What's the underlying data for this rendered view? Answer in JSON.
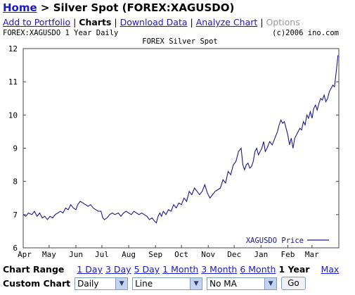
{
  "header": {
    "home_label": "Home",
    "sep": " > ",
    "title": "Silver Spot (FOREX:XAGUSDO)"
  },
  "nav": {
    "add": "Add to Portfolio",
    "charts": "Charts",
    "download": "Download Data",
    "analyze": "Analyze Chart",
    "options": "Options"
  },
  "chart_data": {
    "type": "line",
    "top_left_label": "FOREX:XAGUSDO 1 Year Daily",
    "copyright": "(c)2006 ino.com",
    "title": "FOREX Silver Spot",
    "ylim": [
      6,
      12
    ],
    "y_ticks": [
      "6",
      "7",
      "8",
      "9",
      "10",
      "11",
      "12"
    ],
    "x_ticks": [
      "Apr",
      "May",
      "Jun",
      "Jul",
      "Aug",
      "Sep",
      "Oct",
      "Nov",
      "Dec",
      "Jan",
      "Feb",
      "Mar"
    ],
    "x_tick_days": [
      0,
      30,
      61,
      91,
      122,
      153,
      183,
      214,
      244,
      275,
      306,
      334
    ],
    "x_max_day": 365,
    "grid": false,
    "legend_position": "bottom-right",
    "series": [
      {
        "name": "XAGUSDO Price",
        "color": "#1a1a8c",
        "points": [
          [
            0,
            7.0
          ],
          [
            3,
            6.95
          ],
          [
            6,
            7.05
          ],
          [
            10,
            7.0
          ],
          [
            13,
            7.1
          ],
          [
            16,
            6.95
          ],
          [
            19,
            7.05
          ],
          [
            22,
            6.9
          ],
          [
            25,
            6.95
          ],
          [
            28,
            6.85
          ],
          [
            31,
            6.95
          ],
          [
            34,
            6.9
          ],
          [
            37,
            7.0
          ],
          [
            40,
            7.05
          ],
          [
            43,
            7.1
          ],
          [
            46,
            7.05
          ],
          [
            49,
            7.2
          ],
          [
            52,
            7.15
          ],
          [
            55,
            7.3
          ],
          [
            58,
            7.2
          ],
          [
            61,
            7.15
          ],
          [
            63,
            7.3
          ],
          [
            66,
            7.4
          ],
          [
            69,
            7.35
          ],
          [
            72,
            7.3
          ],
          [
            75,
            7.25
          ],
          [
            78,
            7.3
          ],
          [
            81,
            7.2
          ],
          [
            84,
            7.15
          ],
          [
            87,
            7.1
          ],
          [
            90,
            7.1
          ],
          [
            92,
            6.9
          ],
          [
            94,
            6.85
          ],
          [
            97,
            6.9
          ],
          [
            100,
            7.0
          ],
          [
            103,
            7.05
          ],
          [
            106,
            7.0
          ],
          [
            110,
            7.05
          ],
          [
            113,
            6.95
          ],
          [
            116,
            7.05
          ],
          [
            119,
            7.1
          ],
          [
            122,
            7.05
          ],
          [
            125,
            7.0
          ],
          [
            128,
            7.1
          ],
          [
            131,
            7.05
          ],
          [
            134,
            7.0
          ],
          [
            137,
            7.05
          ],
          [
            140,
            7.0
          ],
          [
            143,
            6.95
          ],
          [
            146,
            6.85
          ],
          [
            149,
            6.9
          ],
          [
            152,
            6.8
          ],
          [
            154,
            6.75
          ],
          [
            156,
            6.95
          ],
          [
            158,
            7.05
          ],
          [
            160,
            6.95
          ],
          [
            162,
            7.1
          ],
          [
            165,
            7.0
          ],
          [
            168,
            7.15
          ],
          [
            171,
            7.1
          ],
          [
            174,
            7.3
          ],
          [
            177,
            7.2
          ],
          [
            180,
            7.35
          ],
          [
            183,
            7.3
          ],
          [
            186,
            7.5
          ],
          [
            189,
            7.4
          ],
          [
            192,
            7.7
          ],
          [
            195,
            7.6
          ],
          [
            198,
            7.8
          ],
          [
            201,
            7.7
          ],
          [
            204,
            7.6
          ],
          [
            207,
            7.7
          ],
          [
            210,
            7.9
          ],
          [
            213,
            7.65
          ],
          [
            216,
            7.5
          ],
          [
            219,
            7.6
          ],
          [
            222,
            7.7
          ],
          [
            225,
            7.75
          ],
          [
            228,
            7.8
          ],
          [
            231,
            8.05
          ],
          [
            234,
            7.95
          ],
          [
            237,
            8.3
          ],
          [
            240,
            8.2
          ],
          [
            243,
            8.5
          ],
          [
            246,
            8.6
          ],
          [
            249,
            8.9
          ],
          [
            252,
            9.0
          ],
          [
            254,
            8.5
          ],
          [
            256,
            8.35
          ],
          [
            258,
            8.5
          ],
          [
            260,
            8.55
          ],
          [
            262,
            8.4
          ],
          [
            264,
            8.45
          ],
          [
            266,
            8.6
          ],
          [
            268,
            8.9
          ],
          [
            270,
            9.0
          ],
          [
            272,
            8.8
          ],
          [
            274,
            8.9
          ],
          [
            276,
            9.0
          ],
          [
            278,
            9.2
          ],
          [
            280,
            8.9
          ],
          [
            282,
            9.0
          ],
          [
            285,
            9.2
          ],
          [
            288,
            9.1
          ],
          [
            291,
            9.3
          ],
          [
            294,
            9.5
          ],
          [
            296,
            9.7
          ],
          [
            298,
            9.85
          ],
          [
            300,
            9.75
          ],
          [
            302,
            9.8
          ],
          [
            304,
            9.6
          ],
          [
            306,
            9.4
          ],
          [
            308,
            9.1
          ],
          [
            310,
            9.3
          ],
          [
            312,
            9.0
          ],
          [
            314,
            9.3
          ],
          [
            316,
            9.4
          ],
          [
            318,
            9.5
          ],
          [
            320,
            9.6
          ],
          [
            322,
            9.55
          ],
          [
            324,
            9.8
          ],
          [
            326,
            9.7
          ],
          [
            328,
            10.0
          ],
          [
            330,
            9.9
          ],
          [
            332,
            10.1
          ],
          [
            334,
            9.9
          ],
          [
            336,
            10.2
          ],
          [
            338,
            10.3
          ],
          [
            340,
            10.15
          ],
          [
            342,
            10.35
          ],
          [
            344,
            10.5
          ],
          [
            346,
            10.45
          ],
          [
            348,
            10.6
          ],
          [
            350,
            10.4
          ],
          [
            352,
            10.5
          ],
          [
            354,
            10.7
          ],
          [
            356,
            10.8
          ],
          [
            358,
            10.9
          ],
          [
            360,
            10.85
          ],
          [
            362,
            11.3
          ],
          [
            364,
            11.8
          ]
        ]
      }
    ]
  },
  "range": {
    "label": "Chart Range",
    "options": [
      "1 Day",
      "3 Day",
      "5 Day",
      "1 Month",
      "3 Month",
      "6 Month"
    ],
    "active": "1 Year",
    "max": "Max"
  },
  "custom": {
    "label": "Custom Chart",
    "period": "Daily",
    "style": "Line",
    "ma": "No MA",
    "go": "Go"
  }
}
